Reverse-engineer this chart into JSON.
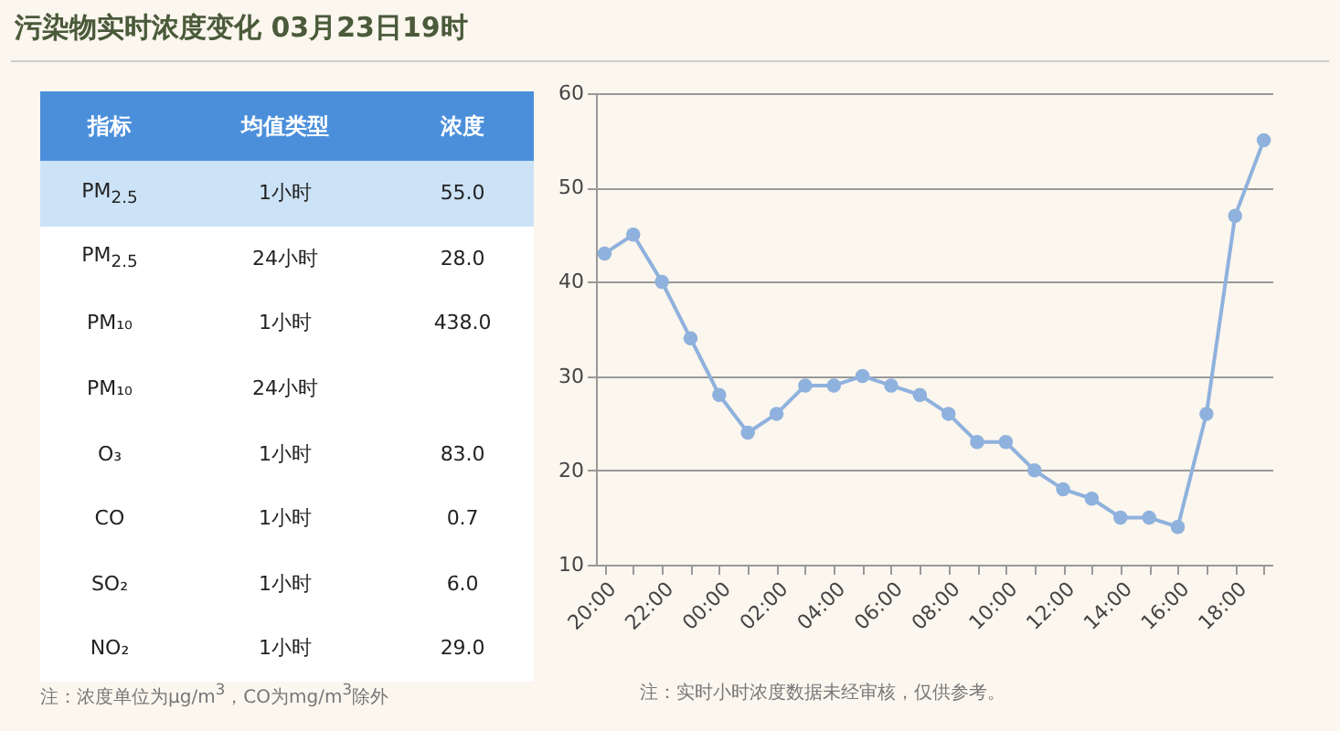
{
  "chart_data": [
    {
      "type": "other",
      "title": "污染物实时浓度变化 03月23日19时",
      "categories": [
        "指标",
        "均值类型",
        "浓度"
      ],
      "cell_labels": [
        [
          "PM$_{2.5}$",
          "1小时",
          "55.0"
        ],
        [
          "PM$_{2.5}$",
          "24小时",
          "28.0"
        ],
        [
          "PM₁₀",
          "1小时",
          "438.0"
        ],
        [
          "PM₁₀",
          "24小时",
          null
        ],
        [
          "O₃",
          "1小时",
          "83.0"
        ],
        [
          "CO",
          "1小时",
          "0.7"
        ],
        [
          "SO₂",
          "1小时",
          "6.0"
        ],
        [
          "NO₂",
          "1小时",
          "29.0"
        ]
      ],
      "annotations": [
        "注：浓度单位为μg/m$^{3}$，CO为mg/m$^{3}$除外"
      ]
    },
    {
      "type": "line",
      "categories": [
        "20:00",
        null,
        "22:00",
        null,
        "00:00",
        null,
        "02:00",
        null,
        "04:00",
        null,
        "06:00",
        null,
        "08:00",
        null,
        "10:00",
        null,
        "12:00",
        null,
        "14:00",
        null,
        "16:00",
        null,
        "18:00",
        null
      ],
      "series": [
        {
          "color": "#8fb1dd",
          "values": [
            43,
            45,
            40,
            34,
            28,
            24,
            26,
            29,
            29,
            30,
            29,
            28,
            26,
            23,
            23,
            20,
            18,
            17,
            15,
            15,
            14,
            26,
            47,
            55
          ]
        }
      ],
      "ylim": [
        10,
        60
      ],
      "yticks": [
        10,
        20,
        30,
        40,
        50,
        60
      ],
      "grid": "y",
      "marker": "circle",
      "annotations": [
        "注：实时小时浓度数据未经审核，仅供参考。"
      ]
    }
  ]
}
